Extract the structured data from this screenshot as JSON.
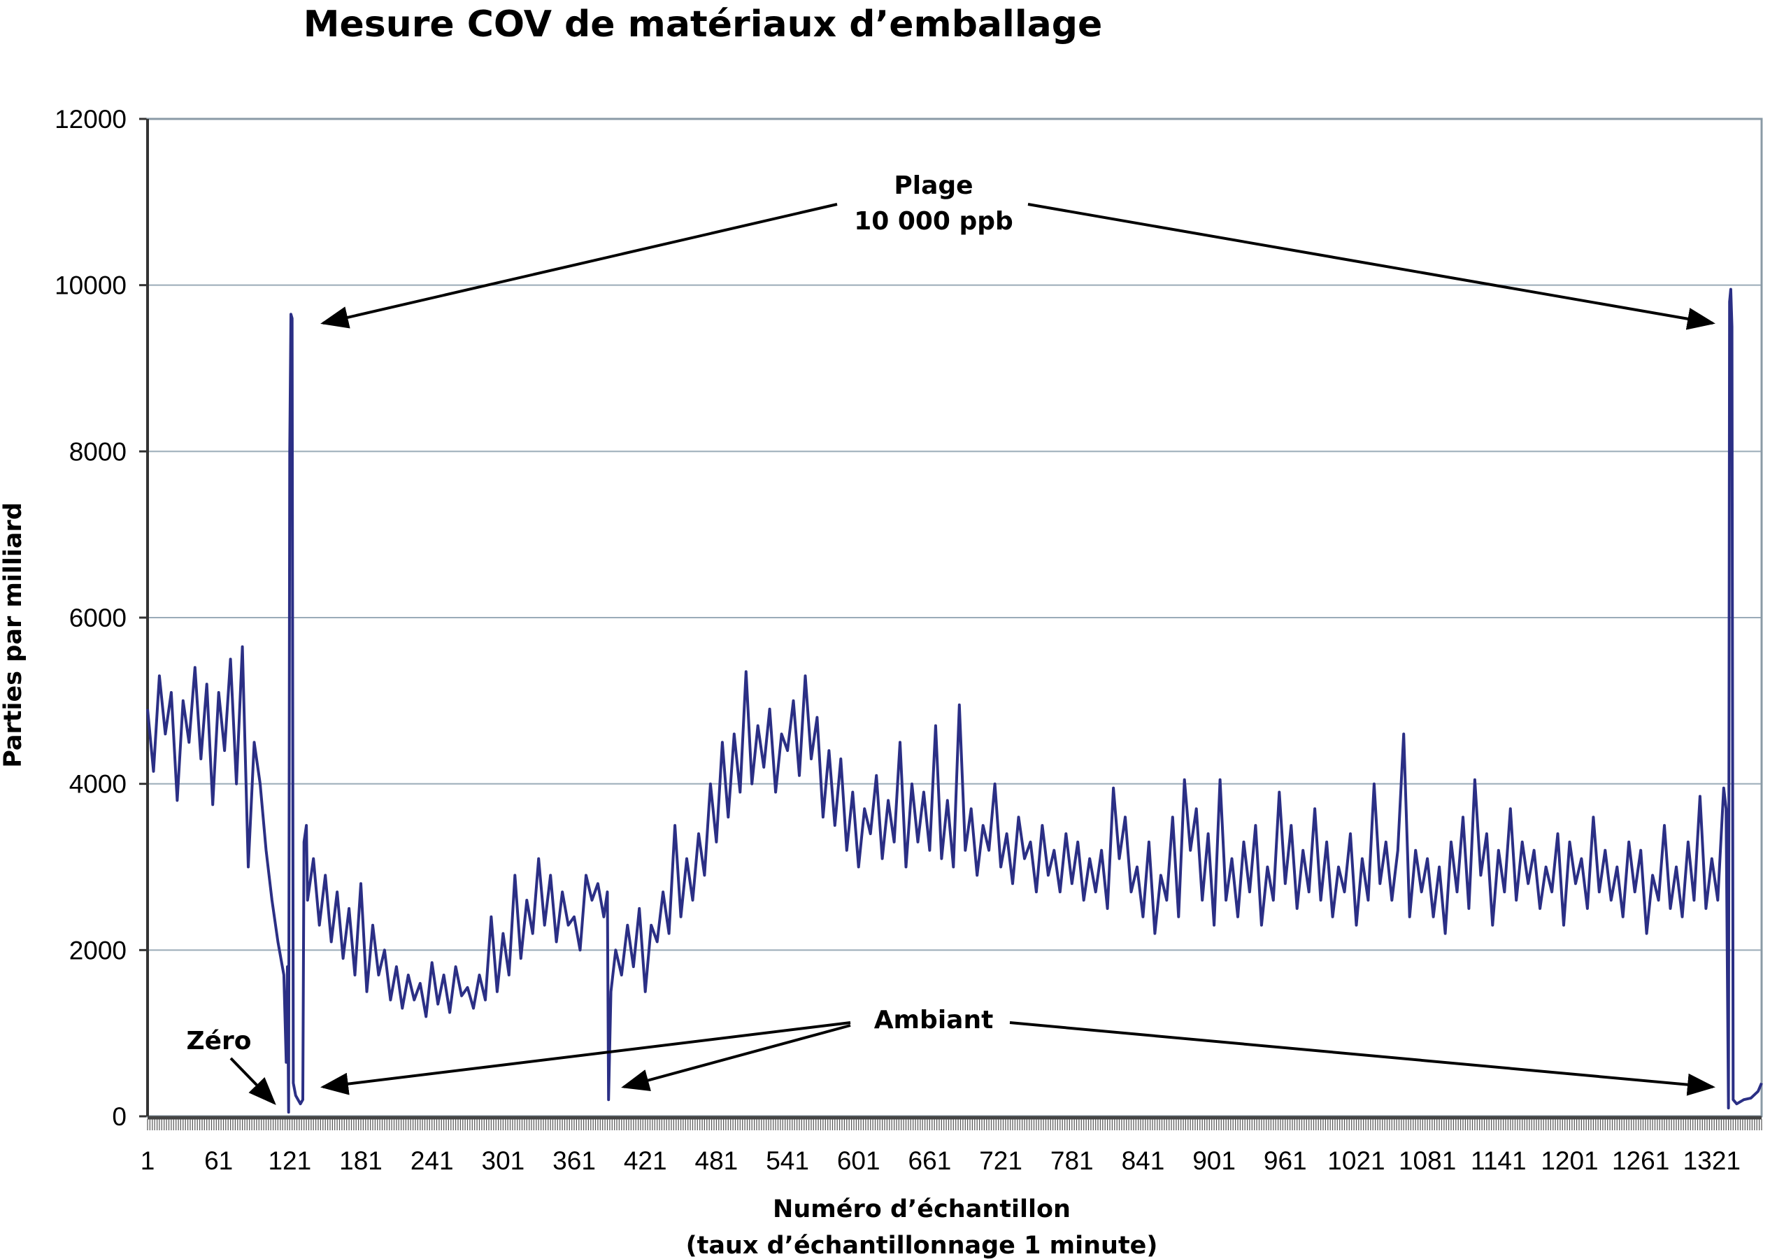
{
  "chart_data": {
    "type": "line",
    "title": "Mesure COV de matériaux d’emballage",
    "xlabel": "Numéro d’échantillon",
    "xlabel_sub": "(taux d’échantillonnage 1 minute)",
    "ylabel": "Parties par milliard",
    "xlim": [
      1,
      1363
    ],
    "ylim": [
      0,
      12000
    ],
    "yticks": [
      0,
      2000,
      4000,
      6000,
      8000,
      10000,
      12000
    ],
    "xticks": [
      1,
      61,
      121,
      181,
      241,
      301,
      361,
      421,
      481,
      541,
      601,
      661,
      721,
      781,
      841,
      901,
      961,
      1021,
      1081,
      1141,
      1201,
      1261,
      1321
    ],
    "grid": "horizontal",
    "legend": "none",
    "line_color": "#2b2f85",
    "grid_color": "#9aabb8",
    "annotations": [
      {
        "label_lines": [
          "Plage",
          "10 000 ppb"
        ],
        "points_to_x": [
          122,
          1337
        ]
      },
      {
        "label_lines": [
          "Ambiant"
        ],
        "points_to_x": [
          128,
          390,
          1345
        ]
      },
      {
        "label_lines": [
          "Zéro"
        ],
        "points_to_x": [
          120
        ]
      }
    ],
    "series": [
      {
        "x": [
          1,
          6,
          11,
          16,
          21,
          26,
          31,
          36,
          41,
          46,
          51,
          56,
          61,
          66,
          71,
          76,
          81,
          86,
          91,
          96,
          101,
          106,
          111,
          116,
          118,
          119,
          120,
          121,
          122,
          123,
          124,
          126,
          130,
          132,
          133,
          135,
          136,
          141,
          146,
          151,
          156,
          161,
          166,
          171,
          176,
          181,
          186,
          191,
          196,
          201,
          206,
          211,
          216,
          221,
          226,
          231,
          236,
          241,
          246,
          251,
          256,
          261,
          266,
          271,
          276,
          281,
          286,
          291,
          296,
          301,
          306,
          311,
          316,
          321,
          326,
          331,
          336,
          341,
          346,
          351,
          356,
          361,
          366,
          371,
          376,
          381,
          386,
          389,
          390,
          392,
          396,
          401,
          406,
          411,
          416,
          421,
          426,
          431,
          436,
          441,
          446,
          451,
          456,
          461,
          466,
          471,
          476,
          481,
          486,
          491,
          496,
          501,
          506,
          511,
          516,
          521,
          526,
          531,
          536,
          541,
          546,
          551,
          556,
          561,
          566,
          571,
          576,
          581,
          586,
          591,
          596,
          601,
          606,
          611,
          616,
          621,
          626,
          631,
          636,
          641,
          646,
          651,
          656,
          661,
          666,
          671,
          676,
          681,
          686,
          691,
          696,
          701,
          706,
          711,
          716,
          721,
          726,
          731,
          736,
          741,
          746,
          751,
          756,
          761,
          766,
          771,
          776,
          781,
          786,
          791,
          796,
          801,
          806,
          811,
          816,
          821,
          826,
          831,
          836,
          841,
          846,
          851,
          856,
          861,
          866,
          871,
          876,
          881,
          886,
          891,
          896,
          901,
          906,
          911,
          916,
          921,
          926,
          931,
          936,
          941,
          946,
          951,
          956,
          961,
          966,
          971,
          976,
          981,
          986,
          991,
          996,
          1001,
          1006,
          1011,
          1016,
          1021,
          1026,
          1031,
          1036,
          1041,
          1046,
          1051,
          1056,
          1061,
          1066,
          1071,
          1076,
          1081,
          1086,
          1091,
          1096,
          1101,
          1106,
          1111,
          1116,
          1121,
          1126,
          1131,
          1136,
          1141,
          1146,
          1151,
          1156,
          1161,
          1166,
          1171,
          1176,
          1181,
          1186,
          1191,
          1196,
          1201,
          1206,
          1211,
          1216,
          1221,
          1226,
          1231,
          1236,
          1241,
          1246,
          1251,
          1256,
          1261,
          1266,
          1271,
          1276,
          1281,
          1286,
          1291,
          1296,
          1301,
          1306,
          1311,
          1316,
          1321,
          1326,
          1331,
          1333,
          1335,
          1336,
          1337,
          1338,
          1339,
          1342,
          1348,
          1354,
          1360,
          1363
        ],
        "y": [
          4900,
          4150,
          5300,
          4600,
          5100,
          3800,
          5000,
          4500,
          5400,
          4300,
          5200,
          3750,
          5100,
          4400,
          5500,
          4000,
          5650,
          3000,
          4500,
          4000,
          3200,
          2600,
          2100,
          1700,
          650,
          1800,
          50,
          8000,
          9650,
          9600,
          400,
          250,
          150,
          200,
          3300,
          3500,
          2600,
          3100,
          2300,
          2900,
          2100,
          2700,
          1900,
          2500,
          1700,
          2800,
          1500,
          2300,
          1700,
          2000,
          1400,
          1800,
          1300,
          1700,
          1400,
          1600,
          1200,
          1850,
          1350,
          1700,
          1250,
          1800,
          1450,
          1550,
          1300,
          1700,
          1400,
          2400,
          1500,
          2200,
          1700,
          2900,
          1900,
          2600,
          2200,
          3100,
          2300,
          2900,
          2100,
          2700,
          2300,
          2400,
          2000,
          2900,
          2600,
          2800,
          2400,
          2700,
          200,
          1500,
          2000,
          1700,
          2300,
          1800,
          2500,
          1500,
          2300,
          2100,
          2700,
          2200,
          3500,
          2400,
          3100,
          2600,
          3400,
          2900,
          4000,
          3300,
          4500,
          3600,
          4600,
          3900,
          5350,
          4000,
          4700,
          4200,
          4900,
          3900,
          4600,
          4400,
          5000,
          4100,
          5300,
          4300,
          4800,
          3600,
          4400,
          3500,
          4300,
          3200,
          3900,
          3000,
          3700,
          3400,
          4100,
          3100,
          3800,
          3300,
          4500,
          3000,
          4000,
          3300,
          3900,
          3200,
          4700,
          3100,
          3800,
          3000,
          4950,
          3200,
          3700,
          2900,
          3500,
          3200,
          4000,
          3000,
          3400,
          2800,
          3600,
          3100,
          3300,
          2700,
          3500,
          2900,
          3200,
          2700,
          3400,
          2800,
          3300,
          2600,
          3100,
          2700,
          3200,
          2500,
          3950,
          3100,
          3600,
          2700,
          3000,
          2400,
          3300,
          2200,
          2900,
          2600,
          3600,
          2400,
          4050,
          3200,
          3700,
          2600,
          3400,
          2300,
          4050,
          2600,
          3100,
          2400,
          3300,
          2700,
          3500,
          2300,
          3000,
          2600,
          3900,
          2800,
          3500,
          2500,
          3200,
          2700,
          3700,
          2600,
          3300,
          2400,
          3000,
          2700,
          3400,
          2300,
          3100,
          2600,
          4000,
          2800,
          3300,
          2600,
          3200,
          4600,
          2400,
          3200,
          2700,
          3100,
          2400,
          3000,
          2200,
          3300,
          2700,
          3600,
          2500,
          4050,
          2900,
          3400,
          2300,
          3200,
          2700,
          3700,
          2600,
          3300,
          2800,
          3200,
          2500,
          3000,
          2700,
          3400,
          2300,
          3300,
          2800,
          3100,
          2500,
          3600,
          2700,
          3200,
          2600,
          3000,
          2400,
          3300,
          2700,
          3200,
          2200,
          2900,
          2600,
          3500,
          2500,
          3000,
          2400,
          3300,
          2600,
          3850,
          2500,
          3100,
          2600,
          3950,
          3700,
          100,
          9800,
          9950,
          9500,
          200,
          150,
          200,
          220,
          300,
          400
        ]
      }
    ]
  }
}
